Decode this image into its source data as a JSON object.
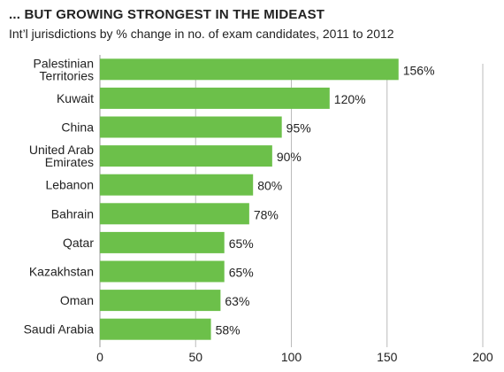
{
  "chart_data": {
    "type": "bar",
    "orientation": "horizontal",
    "title": "... BUT GROWING STRONGEST IN THE MIDEAST",
    "subtitle": "Int’l jurisdictions by % change in no. of exam candidates, 2011 to 2012",
    "categories": [
      "Palestinian Territories",
      "Kuwait",
      "China",
      "United Arab Emirates",
      "Lebanon",
      "Bahrain",
      "Qatar",
      "Kazakhstan",
      "Oman",
      "Saudi Arabia"
    ],
    "category_lines": [
      [
        "Palestinian",
        "Territories"
      ],
      [
        "Kuwait"
      ],
      [
        "China"
      ],
      [
        "United Arab",
        "Emirates"
      ],
      [
        "Lebanon"
      ],
      [
        "Bahrain"
      ],
      [
        "Qatar"
      ],
      [
        "Kazakhstan"
      ],
      [
        "Oman"
      ],
      [
        "Saudi Arabia"
      ]
    ],
    "values": [
      156,
      120,
      95,
      90,
      80,
      78,
      65,
      65,
      63,
      58
    ],
    "value_labels": [
      "156%",
      "120%",
      "95%",
      "90%",
      "80%",
      "78%",
      "65%",
      "65%",
      "63%",
      "58%"
    ],
    "xlim": [
      0,
      200
    ],
    "xticks": [
      0,
      50,
      100,
      150,
      200
    ],
    "grid": true,
    "bar_color": "#6cc04a",
    "grid_color": "#bbbbbb"
  }
}
